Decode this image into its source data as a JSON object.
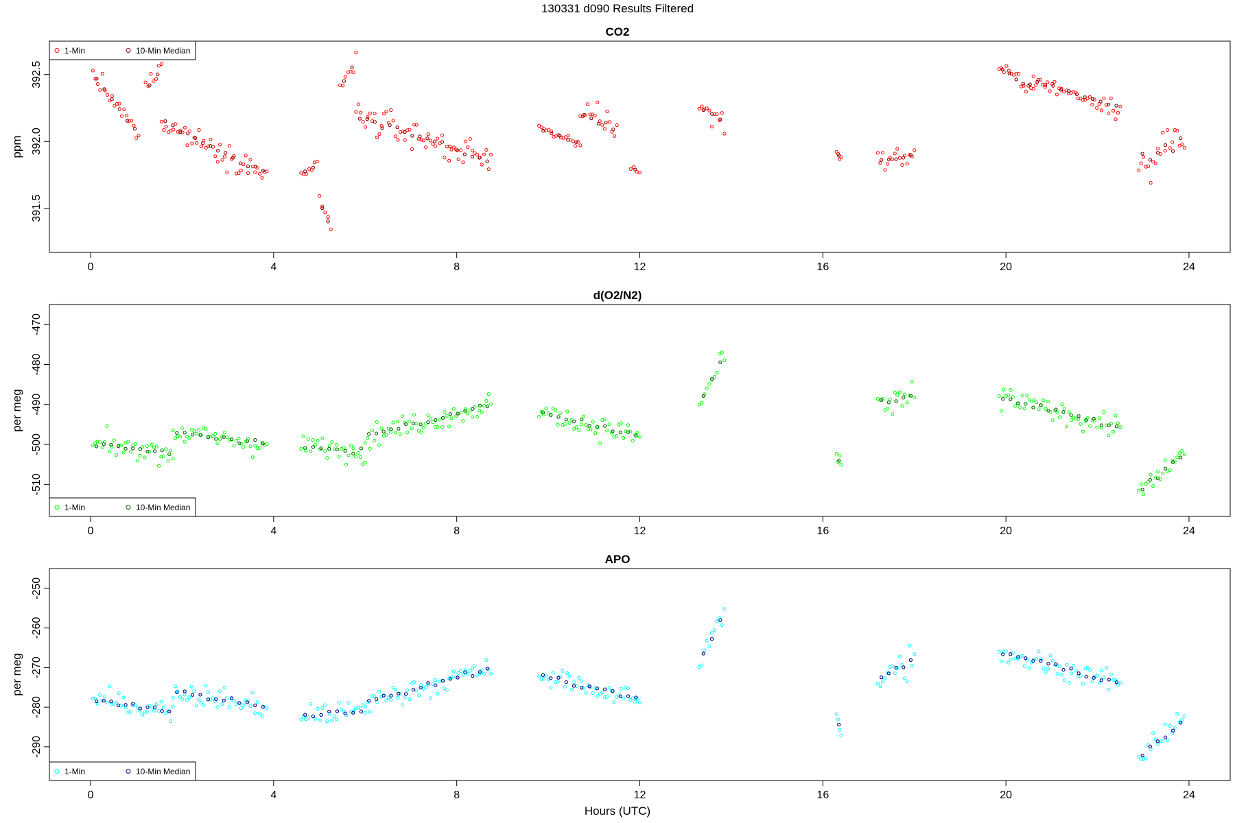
{
  "page_title": "130331   d090   Results Filtered",
  "xlabel": "Hours (UTC)",
  "colors": {
    "co2_1min": "#ff0000",
    "co2_median": "#8b0000",
    "o2_1min": "#00ff00",
    "o2_median": "#006400",
    "apo_1min": "#00ffff",
    "apo_median": "#00008b"
  },
  "chart_data": [
    {
      "type": "scatter",
      "title": "CO2",
      "ylabel": "ppm",
      "xlim": [
        -0.9,
        24.9
      ],
      "ylim": [
        392.75,
        391.17
      ],
      "y_reversed": true,
      "xticks": [
        0,
        4,
        8,
        12,
        16,
        20,
        24
      ],
      "xtick_labels": [
        "0",
        "4",
        "8",
        "12",
        "16",
        "20",
        "24"
      ],
      "yticks": [
        392.5,
        392.0,
        391.5
      ],
      "ytick_labels": [
        "392.5",
        "392.0",
        "391.5"
      ],
      "legend_position": "top-left",
      "legend": [
        "1-Min",
        "10-Min Median"
      ],
      "segments": [
        {
          "x0": 0.05,
          "x1": 1.05,
          "y0": 392.5,
          "y1": 392.05,
          "sd": 0.1
        },
        {
          "x0": 1.2,
          "x1": 1.55,
          "y0": 392.4,
          "y1": 392.55,
          "sd": 0.12
        },
        {
          "x0": 1.55,
          "x1": 3.85,
          "y0": 392.15,
          "y1": 391.75,
          "sd": 0.12
        },
        {
          "x0": 4.6,
          "x1": 4.95,
          "y0": 391.75,
          "y1": 391.82,
          "sd": 0.05
        },
        {
          "x0": 5.0,
          "x1": 5.25,
          "y0": 391.55,
          "y1": 391.35,
          "sd": 0.07
        },
        {
          "x0": 5.45,
          "x1": 5.8,
          "y0": 392.4,
          "y1": 392.6,
          "sd": 0.1
        },
        {
          "x0": 5.8,
          "x1": 8.75,
          "y0": 392.2,
          "y1": 391.85,
          "sd": 0.15
        },
        {
          "x0": 9.8,
          "x1": 10.7,
          "y0": 392.1,
          "y1": 391.98,
          "sd": 0.05
        },
        {
          "x0": 10.7,
          "x1": 11.5,
          "y0": 392.2,
          "y1": 392.1,
          "sd": 0.15
        },
        {
          "x0": 11.8,
          "x1": 12.0,
          "y0": 391.8,
          "y1": 391.78,
          "sd": 0.06
        },
        {
          "x0": 13.3,
          "x1": 13.85,
          "y0": 392.25,
          "y1": 392.15,
          "sd": 0.12
        },
        {
          "x0": 16.3,
          "x1": 16.4,
          "y0": 391.92,
          "y1": 391.88,
          "sd": 0.04
        },
        {
          "x0": 17.2,
          "x1": 18.0,
          "y0": 391.85,
          "y1": 391.9,
          "sd": 0.1
        },
        {
          "x0": 19.85,
          "x1": 20.6,
          "y0": 392.55,
          "y1": 392.4,
          "sd": 0.08
        },
        {
          "x0": 20.6,
          "x1": 22.5,
          "y0": 392.45,
          "y1": 392.25,
          "sd": 0.1
        },
        {
          "x0": 22.9,
          "x1": 23.9,
          "y0": 391.85,
          "y1": 392.0,
          "sd": 0.25
        }
      ]
    },
    {
      "type": "scatter",
      "title": "d(O2/N2)",
      "ylabel": "per meg",
      "xlim": [
        -0.9,
        24.9
      ],
      "ylim": [
        -465.0,
        -518.0
      ],
      "y_reversed": true,
      "xticks": [
        0,
        4,
        8,
        12,
        16,
        20,
        24
      ],
      "xtick_labels": [
        "0",
        "4",
        "8",
        "12",
        "16",
        "20",
        "24"
      ],
      "yticks": [
        -470,
        -480,
        -490,
        -500,
        -510
      ],
      "ytick_labels": [
        "-470",
        "-480",
        "-490",
        "-500",
        "-510"
      ],
      "legend_position": "bottom-left",
      "legend": [
        "1-Min",
        "10-Min Median"
      ],
      "segments": [
        {
          "x0": 0.05,
          "x1": 1.8,
          "y0": -500.0,
          "y1": -502.0,
          "sd": 4.0
        },
        {
          "x0": 1.8,
          "x1": 3.85,
          "y0": -497.0,
          "y1": -500.0,
          "sd": 4.0
        },
        {
          "x0": 4.6,
          "x1": 6.0,
          "y0": -500.0,
          "y1": -502.0,
          "sd": 4.0
        },
        {
          "x0": 6.0,
          "x1": 8.75,
          "y0": -498.0,
          "y1": -490.0,
          "sd": 4.0
        },
        {
          "x0": 9.8,
          "x1": 12.0,
          "y0": -492.0,
          "y1": -498.0,
          "sd": 4.0
        },
        {
          "x0": 13.3,
          "x1": 13.85,
          "y0": -490.0,
          "y1": -478.0,
          "sd": 4.0
        },
        {
          "x0": 16.3,
          "x1": 16.4,
          "y0": -503.0,
          "y1": -505.0,
          "sd": 3.0
        },
        {
          "x0": 17.2,
          "x1": 18.0,
          "y0": -490.0,
          "y1": -488.0,
          "sd": 6.0
        },
        {
          "x0": 19.85,
          "x1": 22.5,
          "y0": -488.0,
          "y1": -496.0,
          "sd": 4.0
        },
        {
          "x0": 22.9,
          "x1": 23.9,
          "y0": -512.0,
          "y1": -502.0,
          "sd": 4.0
        }
      ]
    },
    {
      "type": "scatter",
      "title": "APO",
      "ylabel": "per meg",
      "xlim": [
        -0.9,
        24.9
      ],
      "ylim": [
        -245.0,
        -298.5
      ],
      "y_reversed": true,
      "xticks": [
        0,
        4,
        8,
        12,
        16,
        20,
        24
      ],
      "xtick_labels": [
        "0",
        "4",
        "8",
        "12",
        "16",
        "20",
        "24"
      ],
      "yticks": [
        -250,
        -260,
        -270,
        -280,
        -290
      ],
      "ytick_labels": [
        "-250",
        "-260",
        "-270",
        "-280",
        "-290"
      ],
      "legend_position": "bottom-left",
      "legend": [
        "1-Min",
        "10-Min Median"
      ],
      "segments": [
        {
          "x0": 0.05,
          "x1": 1.8,
          "y0": -278.0,
          "y1": -281.0,
          "sd": 4.0
        },
        {
          "x0": 1.8,
          "x1": 3.85,
          "y0": -276.0,
          "y1": -280.0,
          "sd": 4.0
        },
        {
          "x0": 4.6,
          "x1": 6.0,
          "y0": -282.0,
          "y1": -281.0,
          "sd": 4.0
        },
        {
          "x0": 6.0,
          "x1": 8.75,
          "y0": -279.0,
          "y1": -270.0,
          "sd": 4.0
        },
        {
          "x0": 9.8,
          "x1": 12.0,
          "y0": -272.0,
          "y1": -278.0,
          "sd": 4.0
        },
        {
          "x0": 13.3,
          "x1": 13.85,
          "y0": -269.0,
          "y1": -256.0,
          "sd": 4.0
        },
        {
          "x0": 16.3,
          "x1": 16.4,
          "y0": -283.0,
          "y1": -286.0,
          "sd": 3.0
        },
        {
          "x0": 17.2,
          "x1": 18.0,
          "y0": -272.0,
          "y1": -268.0,
          "sd": 6.0
        },
        {
          "x0": 19.85,
          "x1": 22.5,
          "y0": -266.0,
          "y1": -274.0,
          "sd": 4.0
        },
        {
          "x0": 22.9,
          "x1": 23.9,
          "y0": -293.0,
          "y1": -283.0,
          "sd": 4.0
        }
      ]
    }
  ]
}
